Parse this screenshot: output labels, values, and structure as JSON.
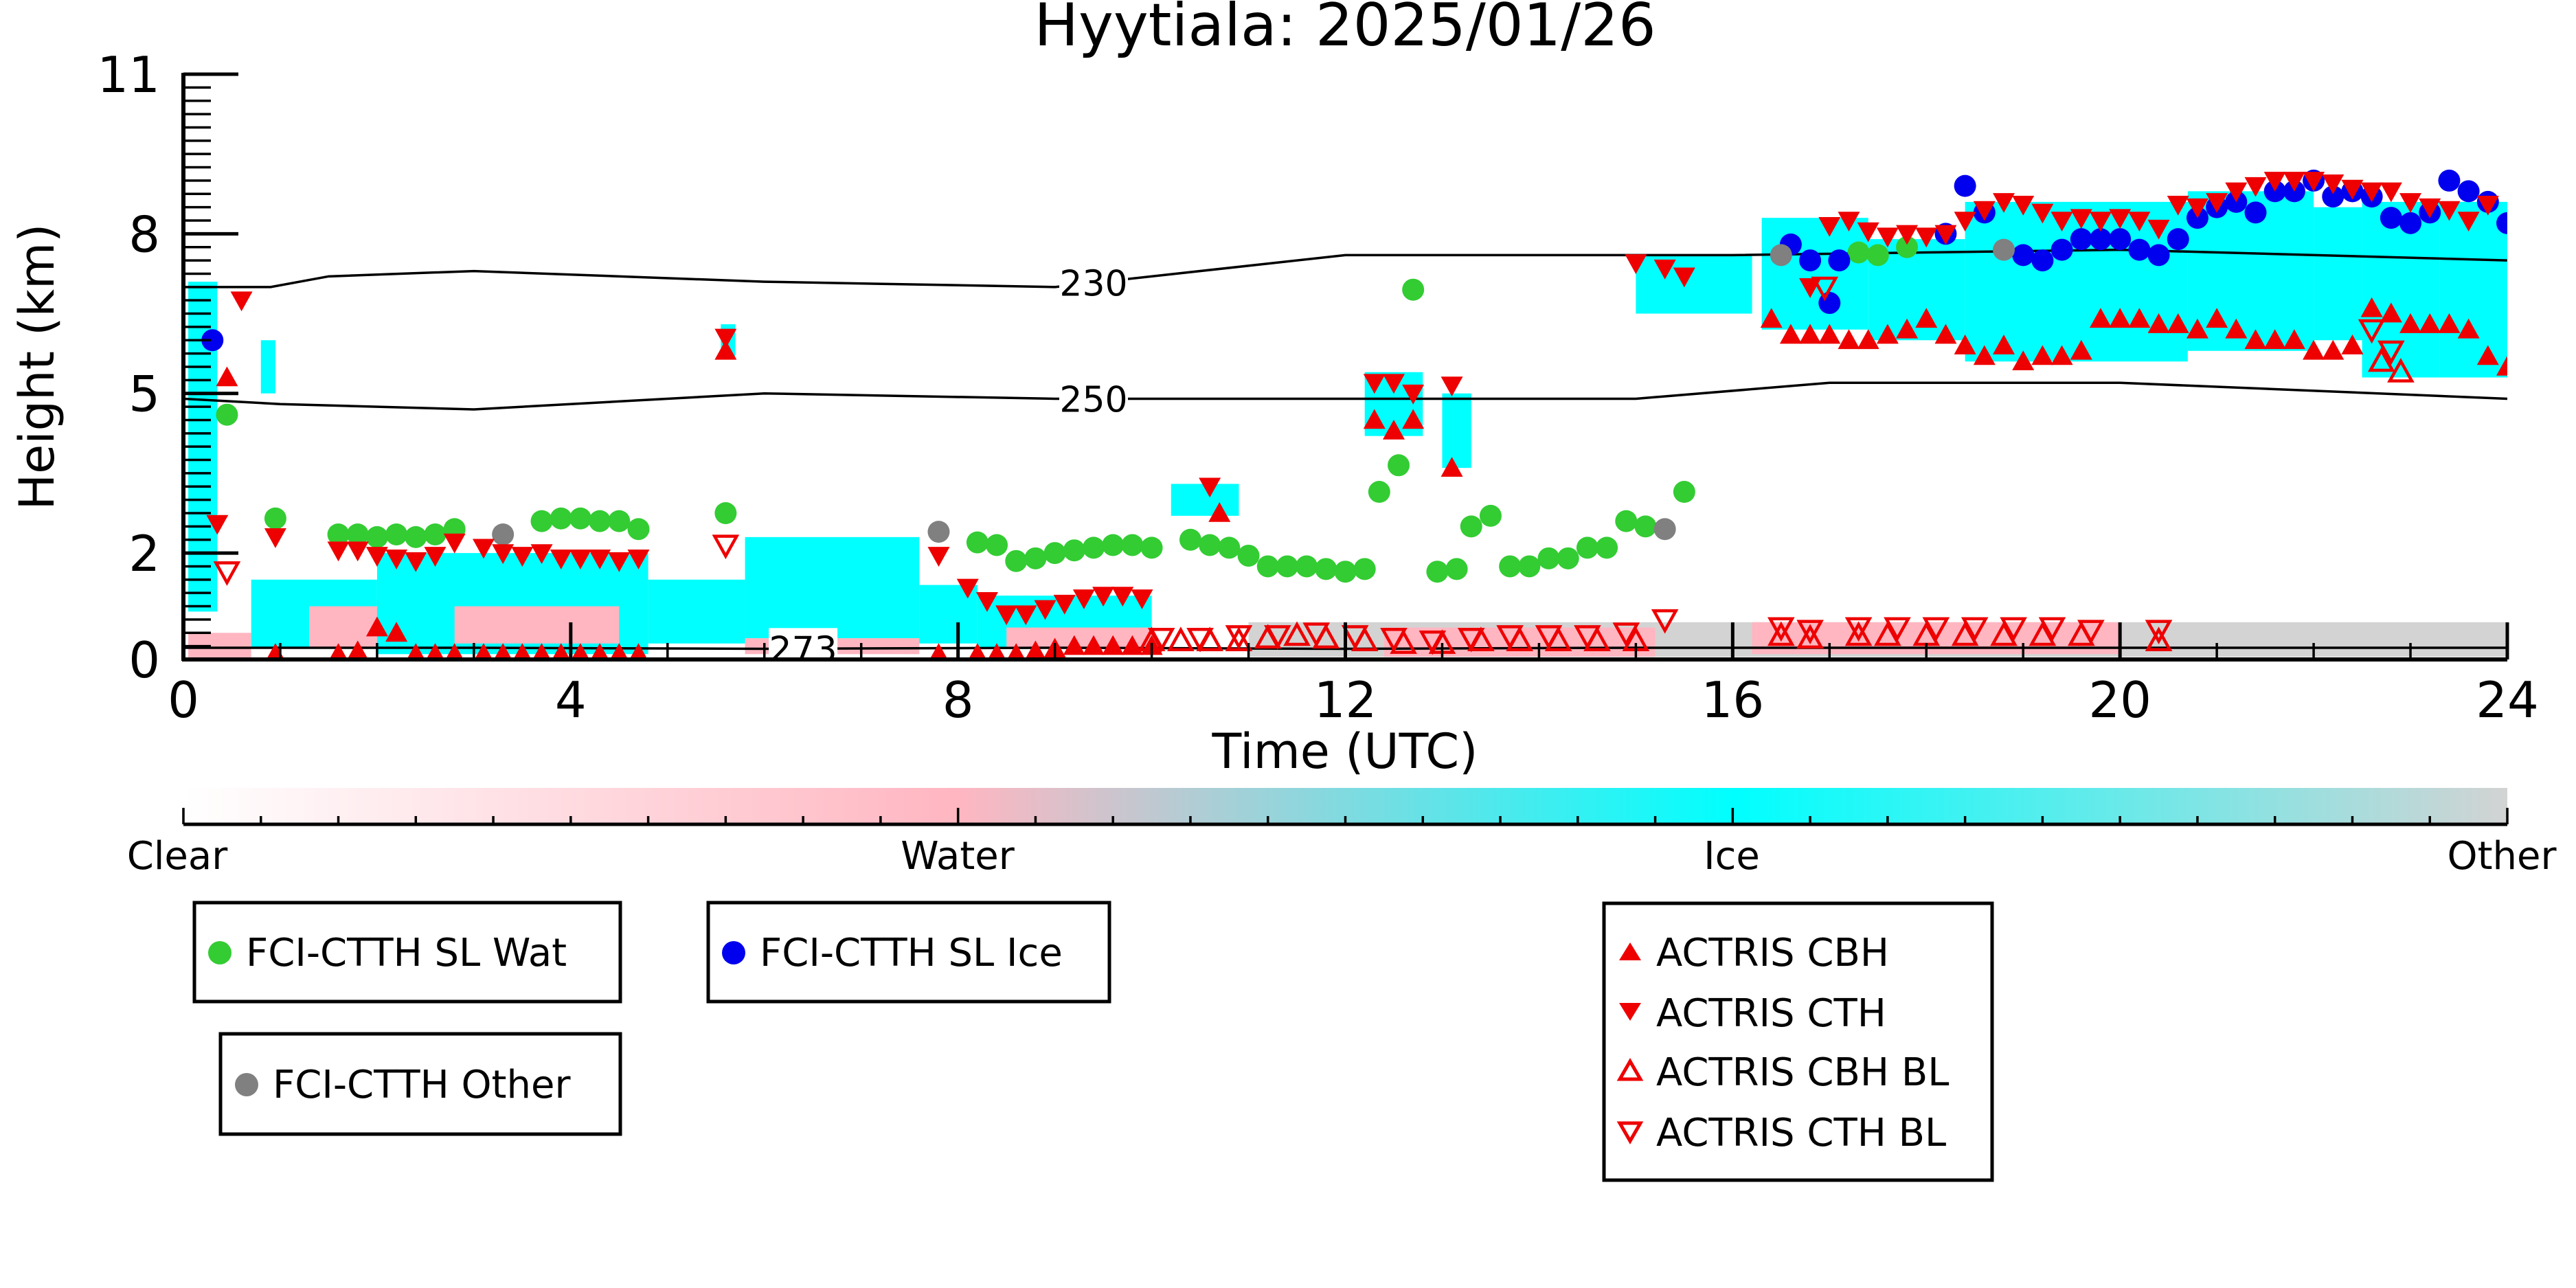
{
  "chart_data": {
    "type": "scatter",
    "title": "Hyytiala: 2025/01/26",
    "xlabel": "Time (UTC)",
    "ylabel": "Height (km)",
    "xlim": [
      0,
      24
    ],
    "ylim": [
      0,
      11
    ],
    "xticks": [
      0,
      4,
      8,
      12,
      16,
      20,
      24
    ],
    "yticks": [
      0,
      2,
      5,
      8,
      11
    ],
    "background": "cloud phase classification (cyan = ice, pink = water, grey = other)",
    "isotherms": [
      {
        "label": "230",
        "label_x": 9.4,
        "x": [
          0,
          0.9,
          1.5,
          3,
          6,
          9,
          12,
          16,
          20,
          24
        ],
        "y": [
          7.0,
          7.0,
          7.2,
          7.3,
          7.1,
          7.0,
          7.6,
          7.6,
          7.7,
          7.5
        ]
      },
      {
        "label": "250",
        "label_x": 9.4,
        "x": [
          0,
          1,
          3,
          6,
          9,
          12,
          15,
          17,
          20,
          24
        ],
        "y": [
          4.9,
          4.8,
          4.7,
          5.0,
          4.9,
          4.9,
          4.9,
          5.2,
          5.2,
          4.9
        ]
      },
      {
        "label": "273",
        "label_x": 6.4,
        "x": [
          0,
          3,
          6,
          9,
          12,
          15,
          18,
          21,
          24
        ],
        "y": [
          0.22,
          0.22,
          0.2,
          0.22,
          0.2,
          0.22,
          0.22,
          0.22,
          0.22
        ]
      }
    ],
    "colorbar": {
      "labels": [
        "Clear",
        "Water",
        "Ice",
        "Other"
      ],
      "stops": [
        "#ffffff",
        "#ffb6c1",
        "#00ffff",
        "#d3d3d3"
      ]
    },
    "legends": [
      {
        "entries": [
          {
            "label": "FCI-CTTH SL Wat",
            "marker": "circle",
            "color": "#33cc33"
          }
        ]
      },
      {
        "entries": [
          {
            "label": "FCI-CTTH SL Ice",
            "marker": "circle",
            "color": "#0000ee"
          }
        ]
      },
      {
        "entries": [
          {
            "label": "FCI-CTTH Other",
            "marker": "circle",
            "color": "#808080"
          }
        ]
      },
      {
        "entries": [
          {
            "label": "ACTRIS CBH",
            "marker": "triangle-up",
            "color": "#ee0000"
          },
          {
            "label": "ACTRIS CTH",
            "marker": "triangle-down",
            "color": "#ee0000"
          },
          {
            "label": "ACTRIS CBH BL",
            "marker": "triangle-up-open",
            "color": "#ee0000"
          },
          {
            "label": "ACTRIS CTH BL",
            "marker": "triangle-down-open",
            "color": "#ee0000"
          }
        ]
      }
    ],
    "series": [
      {
        "name": "FCI-CTTH SL Wat",
        "marker": "circle",
        "color": "#33cc33",
        "x": [
          0.45,
          0.95,
          1.6,
          1.8,
          2.0,
          2.2,
          2.4,
          2.6,
          2.8,
          3.7,
          3.9,
          4.1,
          4.3,
          4.5,
          4.7,
          5.6,
          8.2,
          8.4,
          8.6,
          8.8,
          9.0,
          9.2,
          9.4,
          9.6,
          9.8,
          10.0,
          10.4,
          10.6,
          10.8,
          11.0,
          11.2,
          11.4,
          11.6,
          11.8,
          12.0,
          12.2,
          12.35,
          12.55,
          12.7,
          12.95,
          13.15,
          13.3,
          13.5,
          13.7,
          13.9,
          14.1,
          14.3,
          14.5,
          14.7,
          14.9,
          15.1,
          15.5,
          17.3,
          17.5,
          17.8
        ],
        "y": [
          4.6,
          2.65,
          2.35,
          2.35,
          2.3,
          2.35,
          2.3,
          2.35,
          2.45,
          2.6,
          2.65,
          2.65,
          2.6,
          2.6,
          2.45,
          2.75,
          2.2,
          2.15,
          1.85,
          1.9,
          2.0,
          2.05,
          2.1,
          2.15,
          2.15,
          2.1,
          2.25,
          2.15,
          2.1,
          1.95,
          1.75,
          1.75,
          1.75,
          1.7,
          1.65,
          1.7,
          3.15,
          3.65,
          6.95,
          1.65,
          1.7,
          2.5,
          2.7,
          1.75,
          1.75,
          1.9,
          1.9,
          2.1,
          2.1,
          2.6,
          2.5,
          3.15,
          7.65,
          7.6,
          7.75
        ]
      },
      {
        "name": "FCI-CTTH SL Ice",
        "marker": "circle",
        "color": "#0000ee",
        "x": [
          0.3,
          16.6,
          16.8,
          17.0,
          17.1,
          18.2,
          18.4,
          18.6,
          19.0,
          19.2,
          19.4,
          19.6,
          19.8,
          20.0,
          20.2,
          20.4,
          20.6,
          20.8,
          21.0,
          21.2,
          21.4,
          21.6,
          21.8,
          22.0,
          22.2,
          22.4,
          22.6,
          22.8,
          23.0,
          23.2,
          23.4,
          23.6,
          23.8,
          24.0
        ],
        "y": [
          6.0,
          7.8,
          7.5,
          6.7,
          7.5,
          8.0,
          8.9,
          8.4,
          7.6,
          7.5,
          7.7,
          7.9,
          7.9,
          7.9,
          7.7,
          7.6,
          7.9,
          8.3,
          8.5,
          8.6,
          8.4,
          8.8,
          8.8,
          9.0,
          8.7,
          8.8,
          8.7,
          8.3,
          8.2,
          8.4,
          9.0,
          8.8,
          8.6,
          8.2
        ]
      },
      {
        "name": "FCI-CTTH Other",
        "marker": "circle",
        "color": "#808080",
        "x": [
          3.3,
          7.8,
          15.3,
          16.5,
          18.8
        ],
        "y": [
          2.35,
          2.4,
          2.45,
          7.6,
          7.7
        ]
      },
      {
        "name": "ACTRIS CBH",
        "marker": "triangle-up",
        "color": "#ee0000",
        "x": [
          0.45,
          0.95,
          1.6,
          1.8,
          2.0,
          2.2,
          2.4,
          2.6,
          2.8,
          3.1,
          3.3,
          3.5,
          3.7,
          3.9,
          4.1,
          4.3,
          4.5,
          4.7,
          5.6,
          7.8,
          8.2,
          8.4,
          8.6,
          8.8,
          9.0,
          9.2,
          9.4,
          9.6,
          9.8,
          10.0,
          10.7,
          12.3,
          12.5,
          12.7,
          13.1,
          16.4,
          16.6,
          16.8,
          17.0,
          17.2,
          17.4,
          17.6,
          17.8,
          18.0,
          18.2,
          18.4,
          18.6,
          18.8,
          19.0,
          19.2,
          19.4,
          19.6,
          19.8,
          20.0,
          20.2,
          20.4,
          20.6,
          20.8,
          21.0,
          21.2,
          21.4,
          21.6,
          21.8,
          22.0,
          22.2,
          22.4,
          22.6,
          22.8,
          23.0,
          23.2,
          23.4,
          23.6,
          23.8,
          24.0
        ],
        "y": [
          5.3,
          0.1,
          0.1,
          0.15,
          0.6,
          0.5,
          0.1,
          0.1,
          0.1,
          0.1,
          0.1,
          0.1,
          0.1,
          0.1,
          0.1,
          0.1,
          0.1,
          0.1,
          5.8,
          0.1,
          0.1,
          0.1,
          0.1,
          0.15,
          0.2,
          0.25,
          0.25,
          0.25,
          0.25,
          0.25,
          2.75,
          4.5,
          4.3,
          4.5,
          3.6,
          6.4,
          6.1,
          6.1,
          6.1,
          6.0,
          6.0,
          6.1,
          6.2,
          6.4,
          6.1,
          5.9,
          5.7,
          5.9,
          5.6,
          5.7,
          5.7,
          5.8,
          6.4,
          6.4,
          6.4,
          6.3,
          6.3,
          6.2,
          6.4,
          6.2,
          6.0,
          6.0,
          6.0,
          5.8,
          5.8,
          5.9,
          6.6,
          6.5,
          6.3,
          6.3,
          6.3,
          6.2,
          5.7,
          5.5
        ]
      },
      {
        "name": "ACTRIS CTH",
        "marker": "triangle-down",
        "color": "#ee0000",
        "x": [
          0.35,
          0.6,
          0.95,
          1.6,
          1.8,
          2.0,
          2.2,
          2.4,
          2.6,
          2.8,
          3.1,
          3.3,
          3.5,
          3.7,
          3.9,
          4.1,
          4.3,
          4.5,
          4.7,
          5.6,
          7.8,
          8.1,
          8.3,
          8.5,
          8.7,
          8.9,
          9.1,
          9.3,
          9.5,
          9.7,
          9.9,
          10.6,
          12.3,
          12.5,
          12.7,
          13.1,
          15.0,
          15.3,
          15.5,
          16.8,
          17.0,
          17.2,
          17.4,
          17.6,
          17.8,
          18.0,
          18.2,
          18.4,
          18.6,
          18.8,
          19.0,
          19.2,
          19.4,
          19.6,
          19.8,
          20.0,
          20.2,
          20.4,
          20.6,
          20.8,
          21.0,
          21.2,
          21.4,
          21.6,
          21.8,
          22.0,
          22.2,
          22.4,
          22.6,
          22.8,
          23.0,
          23.2,
          23.4,
          23.6,
          23.8
        ],
        "y": [
          2.55,
          6.75,
          2.3,
          2.05,
          2.05,
          1.95,
          1.9,
          1.85,
          1.95,
          2.2,
          2.1,
          2.0,
          1.95,
          2.0,
          1.9,
          1.9,
          1.9,
          1.85,
          1.9,
          6.05,
          1.95,
          1.35,
          1.1,
          0.85,
          0.85,
          0.95,
          1.05,
          1.15,
          1.2,
          1.2,
          1.15,
          3.25,
          5.2,
          5.2,
          5.0,
          5.15,
          7.45,
          7.35,
          7.2,
          7.0,
          8.15,
          8.25,
          8.05,
          7.95,
          8.0,
          7.95,
          8.0,
          8.25,
          8.45,
          8.6,
          8.55,
          8.4,
          8.25,
          8.3,
          8.25,
          8.3,
          8.25,
          8.1,
          8.55,
          8.5,
          8.6,
          8.8,
          8.9,
          9.0,
          9.0,
          9.0,
          8.95,
          8.85,
          8.8,
          8.8,
          8.6,
          8.5,
          8.45,
          8.25,
          8.55
        ]
      },
      {
        "name": "ACTRIS CBH BL",
        "marker": "triangle-up-open",
        "color": "#ee0000",
        "x": [
          10.0,
          10.3,
          10.6,
          10.9,
          11.2,
          11.5,
          11.8,
          12.2,
          12.6,
          13.0,
          13.4,
          13.8,
          14.2,
          14.6,
          15.0,
          16.5,
          16.8,
          17.3,
          17.6,
          18.0,
          18.4,
          18.8,
          19.2,
          19.6,
          20.4,
          22.7,
          22.9
        ],
        "y": [
          0.35,
          0.35,
          0.35,
          0.35,
          0.4,
          0.45,
          0.4,
          0.35,
          0.3,
          0.3,
          0.35,
          0.35,
          0.35,
          0.35,
          0.35,
          0.45,
          0.4,
          0.45,
          0.45,
          0.45,
          0.45,
          0.45,
          0.45,
          0.45,
          0.35,
          5.6,
          5.4
        ]
      },
      {
        "name": "ACTRIS CTH BL",
        "marker": "triangle-down-open",
        "color": "#ee0000",
        "x": [
          0.45,
          5.6,
          10.1,
          10.5,
          10.9,
          11.3,
          11.7,
          12.1,
          12.5,
          12.9,
          13.3,
          13.7,
          14.1,
          14.5,
          14.9,
          15.3,
          16.5,
          16.8,
          16.95,
          17.3,
          17.7,
          18.1,
          18.5,
          18.9,
          19.3,
          19.7,
          20.4,
          22.6,
          22.8
        ],
        "y": [
          1.65,
          2.15,
          0.4,
          0.4,
          0.45,
          0.45,
          0.5,
          0.45,
          0.4,
          0.35,
          0.4,
          0.45,
          0.45,
          0.45,
          0.5,
          0.75,
          0.6,
          0.55,
          7.0,
          0.6,
          0.6,
          0.6,
          0.6,
          0.6,
          0.6,
          0.55,
          0.55,
          6.2,
          5.8
        ]
      }
    ]
  }
}
